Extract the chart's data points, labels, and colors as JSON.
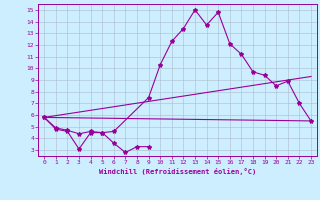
{
  "xlabel": "Windchill (Refroidissement éolien,°C)",
  "background_color": "#cceeff",
  "line_color": "#990099",
  "grid_color": "#aabbcc",
  "xlim": [
    -0.5,
    23.5
  ],
  "ylim": [
    2.5,
    15.5
  ],
  "xticks": [
    0,
    1,
    2,
    3,
    4,
    5,
    6,
    7,
    8,
    9,
    10,
    11,
    12,
    13,
    14,
    15,
    16,
    17,
    18,
    19,
    20,
    21,
    22,
    23
  ],
  "yticks": [
    3,
    4,
    5,
    6,
    7,
    8,
    9,
    10,
    11,
    12,
    13,
    14,
    15
  ],
  "line_zigzag_low": {
    "x": [
      0,
      1,
      2,
      3,
      4,
      5,
      6,
      7,
      8,
      9
    ],
    "y": [
      5.8,
      4.8,
      4.6,
      3.1,
      4.5,
      4.5,
      3.6,
      2.8,
      3.3,
      3.3
    ]
  },
  "line_main": {
    "x": [
      0,
      1,
      2,
      3,
      4,
      5,
      6,
      9,
      10,
      11,
      12,
      13,
      14,
      15,
      16,
      17,
      18,
      19,
      20,
      21,
      22,
      23
    ],
    "y": [
      5.8,
      4.9,
      4.7,
      4.4,
      4.6,
      4.5,
      4.6,
      7.5,
      10.3,
      12.3,
      13.4,
      15.0,
      13.7,
      14.8,
      12.1,
      11.2,
      9.7,
      9.4,
      8.5,
      8.9,
      7.0,
      5.5
    ]
  },
  "line_trend_upper": {
    "x": [
      0,
      23
    ],
    "y": [
      5.8,
      9.3
    ]
  },
  "line_trend_lower": {
    "x": [
      0,
      23
    ],
    "y": [
      5.8,
      5.5
    ]
  }
}
